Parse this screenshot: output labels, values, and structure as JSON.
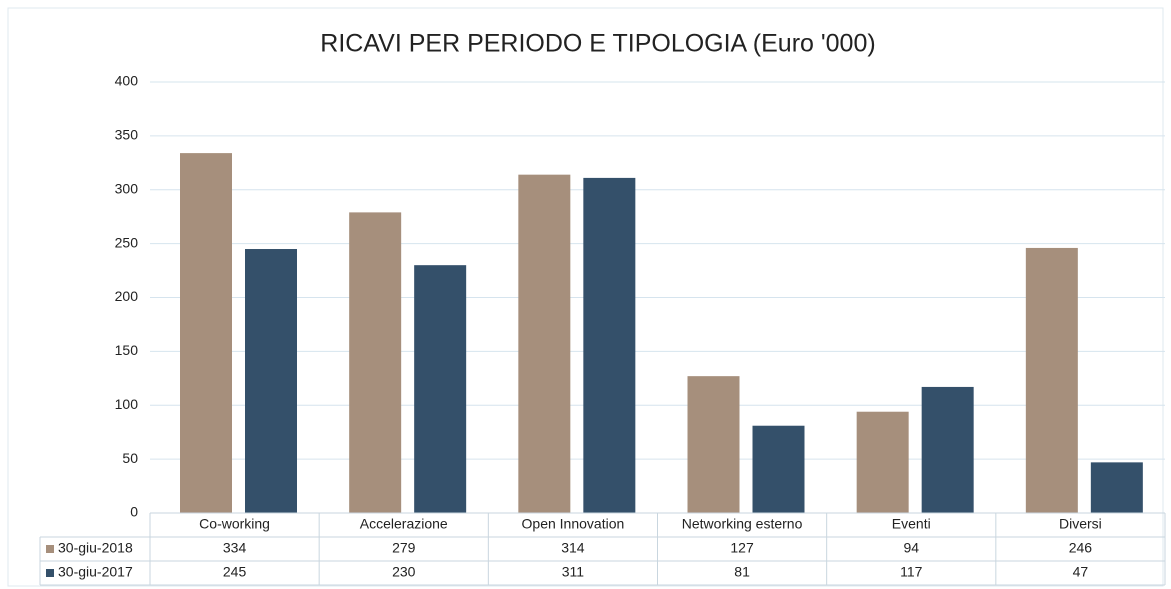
{
  "chart_data": {
    "type": "bar",
    "title": "RICAVI PER PERIODO E TIPOLOGIA (Euro '000)",
    "categories": [
      "Co-working",
      "Accelerazione",
      "Open Innovation",
      "Networking esterno",
      "Eventi",
      "Diversi"
    ],
    "series": [
      {
        "name": "30-giu-2018",
        "color": "#a68f7c",
        "values": [
          334,
          279,
          314,
          127,
          94,
          246
        ]
      },
      {
        "name": "30-giu-2017",
        "color": "#34506a",
        "values": [
          245,
          230,
          311,
          81,
          117,
          47
        ]
      }
    ],
    "ylim": [
      0,
      400
    ],
    "yticks": [
      0,
      50,
      100,
      150,
      200,
      250,
      300,
      350,
      400
    ],
    "grid": true
  }
}
